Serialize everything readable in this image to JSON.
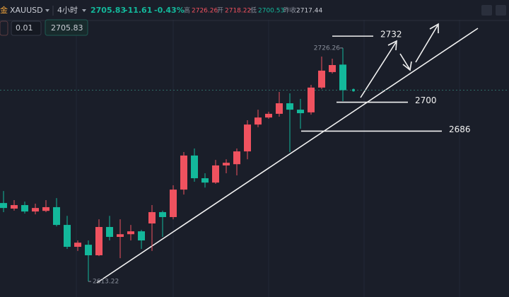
{
  "header": {
    "symbol_icon": "金",
    "symbol": "XAUUSD",
    "interval": "4小时",
    "change": "-11.61",
    "change_pct": "-0.43%",
    "high_label": "高",
    "open_label": "开",
    "low_label": "低",
    "prev_close_label": "昨收",
    "prev_close": "2717.44",
    "lot": "0.01"
  },
  "chart_data": {
    "type": "candlestick",
    "up_color": "#f0525f",
    "down_color": "#13b89b",
    "ylim": [
      2605.7,
      2749.5
    ],
    "levels": [
      2732,
      2700,
      2686
    ],
    "candles": [
      {
        "o": 2651.2,
        "c": 2648.8,
        "h": 2657.0,
        "l": 2646.8
      },
      {
        "o": 2648.5,
        "c": 2650.2,
        "h": 2652.6,
        "l": 2647.5
      },
      {
        "o": 2650.2,
        "c": 2647.1,
        "h": 2651.9,
        "l": 2646.1
      },
      {
        "o": 2647.1,
        "c": 2648.8,
        "h": 2650.9,
        "l": 2645.7
      },
      {
        "o": 2647.4,
        "c": 2649.2,
        "h": 2652.6,
        "l": 2646.8
      },
      {
        "o": 2649.2,
        "c": 2640.6,
        "h": 2653.6,
        "l": 2639.9
      },
      {
        "o": 2640.6,
        "c": 2630.0,
        "h": 2645.0,
        "l": 2629.0
      },
      {
        "o": 2630.0,
        "c": 2632.0,
        "h": 2633.1,
        "l": 2628.0
      },
      {
        "o": 2631.0,
        "c": 2625.9,
        "h": 2633.1,
        "l": 2613.22
      },
      {
        "o": 2625.9,
        "c": 2639.6,
        "h": 2643.3,
        "l": 2625.5
      },
      {
        "o": 2639.6,
        "c": 2634.8,
        "h": 2645.0,
        "l": 2633.1
      },
      {
        "o": 2634.8,
        "c": 2636.1,
        "h": 2643.3,
        "l": 2624.5
      },
      {
        "o": 2636.1,
        "c": 2637.5,
        "h": 2640.6,
        "l": 2633.1
      },
      {
        "o": 2637.5,
        "c": 2633.1,
        "h": 2638.2,
        "l": 2629.0
      },
      {
        "o": 2641.3,
        "c": 2646.8,
        "h": 2650.2,
        "l": 2628.0
      },
      {
        "o": 2646.8,
        "c": 2644.4,
        "h": 2647.5,
        "l": 2634.8
      },
      {
        "o": 2644.4,
        "c": 2657.7,
        "h": 2659.8,
        "l": 2643.3
      },
      {
        "o": 2657.7,
        "c": 2674.2,
        "h": 2675.9,
        "l": 2655.3
      },
      {
        "o": 2674.2,
        "c": 2663.2,
        "h": 2677.6,
        "l": 2661.5
      },
      {
        "o": 2663.2,
        "c": 2661.1,
        "h": 2665.6,
        "l": 2658.7
      },
      {
        "o": 2661.1,
        "c": 2669.4,
        "h": 2672.1,
        "l": 2660.5
      },
      {
        "o": 2669.4,
        "c": 2670.7,
        "h": 2672.4,
        "l": 2665.6
      },
      {
        "o": 2670.0,
        "c": 2676.2,
        "h": 2677.6,
        "l": 2664.6
      },
      {
        "o": 2676.2,
        "c": 2689.2,
        "h": 2691.3,
        "l": 2672.4
      },
      {
        "o": 2689.2,
        "c": 2692.6,
        "h": 2696.4,
        "l": 2687.9
      },
      {
        "o": 2692.6,
        "c": 2694.4,
        "h": 2695.4,
        "l": 2692.0
      },
      {
        "o": 2694.4,
        "c": 2699.5,
        "h": 2705.0,
        "l": 2693.0
      },
      {
        "o": 2699.5,
        "c": 2696.4,
        "h": 2704.3,
        "l": 2675.9
      },
      {
        "o": 2696.4,
        "c": 2694.7,
        "h": 2701.6,
        "l": 2687.2
      },
      {
        "o": 2695.1,
        "c": 2707.1,
        "h": 2708.4,
        "l": 2694.0
      },
      {
        "o": 2707.1,
        "c": 2715.3,
        "h": 2722.1,
        "l": 2706.4
      },
      {
        "o": 2714.6,
        "c": 2718.0,
        "h": 2721.1,
        "l": 2713.9
      },
      {
        "o": 2718.22,
        "c": 2705.83,
        "h": 2726.26,
        "l": 2700.53
      }
    ]
  }
}
